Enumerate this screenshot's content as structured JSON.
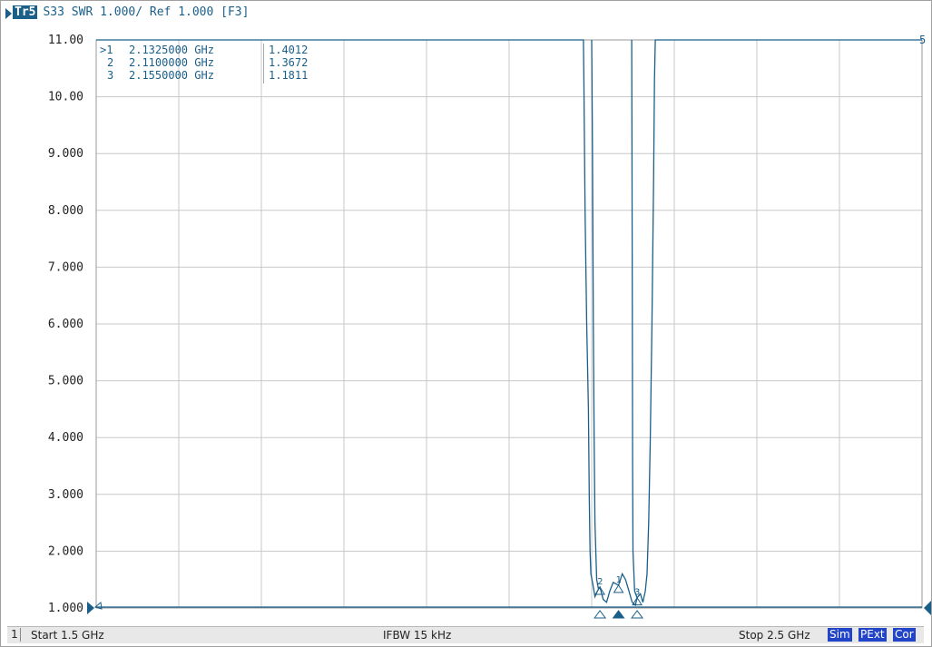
{
  "trace": {
    "badge": "Tr5",
    "title": "S33 SWR 1.000/ Ref 1.000 [F3]"
  },
  "status": {
    "channel": "1",
    "start": "Start 1.5 GHz",
    "ifbw": "IFBW 15 kHz",
    "stop": "Stop 2.5 GHz",
    "flags": [
      "Sim",
      "PExt",
      "Cor"
    ]
  },
  "colors": {
    "trace": "#1a5f8a",
    "grid": "#c8c8c8",
    "axis_text": "#222222"
  },
  "chart_data": {
    "type": "line",
    "xlim": [
      1.5,
      2.5
    ],
    "x_unit": "GHz",
    "ylim": [
      1.0,
      11.0
    ],
    "yticks": [
      "11.00",
      "10.00",
      "9.000",
      "8.000",
      "7.000",
      "6.000",
      "5.000",
      "4.000",
      "3.000",
      "2.000",
      "1.000"
    ],
    "right_edge_label": "5",
    "grid": true,
    "markers": [
      {
        "label": ">1",
        "freq": "2.1325000 GHz",
        "value": "1.4012"
      },
      {
        "label": "2",
        "freq": "2.1100000 GHz",
        "value": "1.3672"
      },
      {
        "label": "3",
        "freq": "2.1550000 GHz",
        "value": "1.1811"
      }
    ],
    "marker_points": [
      {
        "id": "1",
        "x": 2.1325,
        "y": 1.4012
      },
      {
        "id": "2",
        "x": 2.11,
        "y": 1.3672
      },
      {
        "id": "3",
        "x": 2.155,
        "y": 1.1811
      }
    ],
    "series": [
      {
        "points": [
          [
            1.5,
            11.0
          ],
          [
            2.09,
            11.0
          ],
          [
            2.0905,
            10.3
          ],
          [
            2.092,
            8.0
          ],
          [
            2.094,
            6.0
          ],
          [
            2.096,
            4.5
          ],
          [
            2.097,
            3.0
          ],
          [
            2.098,
            2.0
          ],
          [
            2.099,
            1.6
          ],
          [
            2.101,
            1.45
          ],
          [
            2.104,
            1.2
          ],
          [
            2.107,
            1.3
          ],
          [
            2.11,
            1.3672
          ],
          [
            2.114,
            1.15
          ],
          [
            2.118,
            1.1
          ],
          [
            2.122,
            1.3
          ],
          [
            2.126,
            1.45
          ],
          [
            2.1325,
            1.4012
          ],
          [
            2.137,
            1.6
          ],
          [
            2.141,
            1.5
          ],
          [
            2.145,
            1.3
          ],
          [
            2.149,
            1.1
          ],
          [
            2.153,
            1.05
          ],
          [
            2.155,
            1.1811
          ],
          [
            2.159,
            1.25
          ],
          [
            2.162,
            1.1
          ],
          [
            2.165,
            1.3
          ],
          [
            2.167,
            1.6
          ],
          [
            2.169,
            2.5
          ],
          [
            2.171,
            4.0
          ],
          [
            2.173,
            6.0
          ],
          [
            2.175,
            8.5
          ],
          [
            2.176,
            10.3
          ],
          [
            2.177,
            11.0
          ],
          [
            2.5,
            11.0
          ]
        ]
      },
      {
        "points": [
          [
            2.1,
            11.0
          ],
          [
            2.101,
            9.0
          ],
          [
            2.102,
            6.0
          ],
          [
            2.103,
            4.0
          ],
          [
            2.104,
            2.5
          ],
          [
            2.106,
            1.5
          ],
          [
            2.108,
            1.35
          ],
          [
            2.11,
            1.3672
          ]
        ]
      },
      {
        "points": [
          [
            2.1485,
            11.0
          ],
          [
            2.1488,
            9.0
          ],
          [
            2.1492,
            6.0
          ],
          [
            2.1496,
            3.5
          ],
          [
            2.15,
            2.0
          ],
          [
            2.152,
            1.3
          ],
          [
            2.155,
            1.1811
          ]
        ]
      }
    ]
  }
}
